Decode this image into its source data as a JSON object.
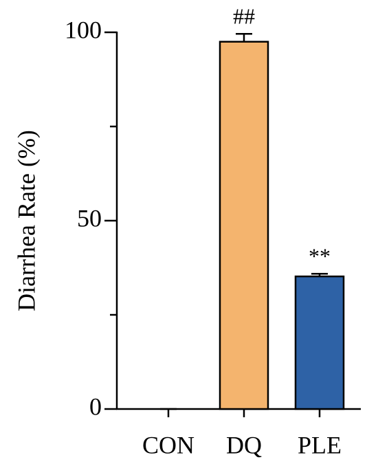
{
  "chart_data": {
    "type": "bar",
    "y_label": "Diarrhea Rate (%)",
    "categories": [
      "CON",
      "DQ",
      "PLE"
    ],
    "values": [
      0,
      97.5,
      35.2
    ],
    "errors": [
      0,
      2.1,
      0.7
    ],
    "colors": [
      "#ffffff",
      "#f4b46e",
      "#2e62a6"
    ],
    "annotations": [
      {
        "category": "DQ",
        "text": "##"
      },
      {
        "category": "PLE",
        "text": "**"
      }
    ],
    "ylim": [
      0,
      100
    ],
    "yticks": [
      0,
      50,
      100
    ],
    "minor_yticks": [
      25,
      75
    ]
  }
}
